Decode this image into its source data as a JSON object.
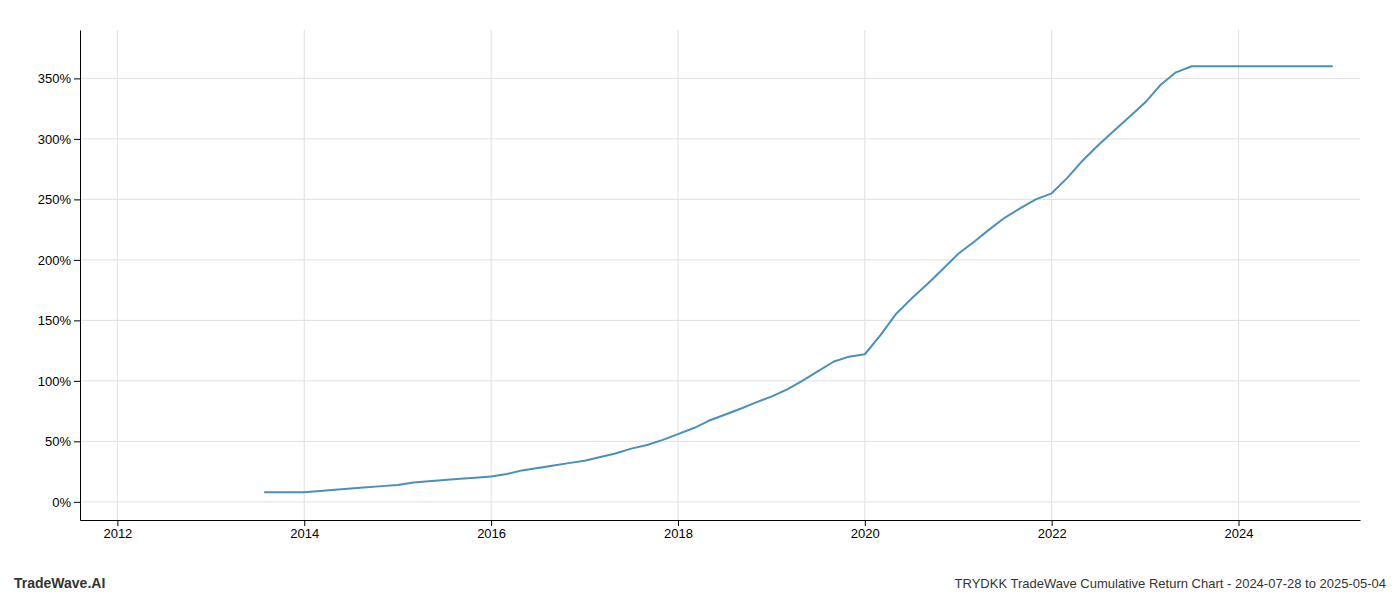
{
  "chart_data": {
    "type": "line",
    "title": "TRYDKK TradeWave Cumulative Return Chart - 2024-07-28 to 2025-05-04",
    "annotations": [
      "TradeWave.AI"
    ],
    "color": "#4a90b8",
    "grid": true,
    "x": [
      2013.58,
      2014.0,
      2014.17,
      2014.33,
      2014.5,
      2014.67,
      2014.83,
      2015.0,
      2015.17,
      2015.33,
      2015.5,
      2015.67,
      2015.83,
      2016.0,
      2016.17,
      2016.33,
      2016.5,
      2016.67,
      2016.83,
      2017.0,
      2017.17,
      2017.33,
      2017.5,
      2017.67,
      2017.83,
      2018.0,
      2018.17,
      2018.33,
      2018.5,
      2018.67,
      2018.83,
      2019.0,
      2019.17,
      2019.33,
      2019.5,
      2019.67,
      2019.83,
      2020.0,
      2020.17,
      2020.33,
      2020.5,
      2020.67,
      2020.83,
      2021.0,
      2021.17,
      2021.33,
      2021.5,
      2021.67,
      2021.83,
      2022.0,
      2022.17,
      2022.33,
      2022.5,
      2022.67,
      2022.83,
      2023.0,
      2023.17,
      2023.33,
      2023.5,
      2023.67,
      2023.83,
      2024.0,
      2024.17,
      2024.5,
      2025.0
    ],
    "values": [
      8,
      8,
      9,
      10,
      11,
      12,
      13,
      14,
      16,
      17,
      18,
      19,
      20,
      21,
      23,
      26,
      28,
      30,
      32,
      34,
      37,
      40,
      44,
      47,
      51,
      56,
      61,
      67,
      72,
      77,
      82,
      87,
      93,
      100,
      108,
      116,
      120,
      122,
      138,
      155,
      168,
      180,
      192,
      205,
      215,
      225,
      235,
      243,
      250,
      255,
      268,
      282,
      295,
      307,
      318,
      330,
      345,
      355,
      360,
      360,
      360,
      360,
      360,
      360,
      360
    ],
    "xlim": [
      2011.6,
      2025.3
    ],
    "xticks": [
      2012,
      2014,
      2016,
      2018,
      2020,
      2022,
      2024
    ],
    "ylim": [
      -15,
      390
    ],
    "yticks": [
      {
        "value": 0,
        "label": "0%"
      },
      {
        "value": 50,
        "label": "50%"
      },
      {
        "value": 100,
        "label": "100%"
      },
      {
        "value": 150,
        "label": "150%"
      },
      {
        "value": 200,
        "label": "200%"
      },
      {
        "value": 250,
        "label": "250%"
      },
      {
        "value": 300,
        "label": "300%"
      },
      {
        "value": 350,
        "label": "350%"
      }
    ]
  }
}
